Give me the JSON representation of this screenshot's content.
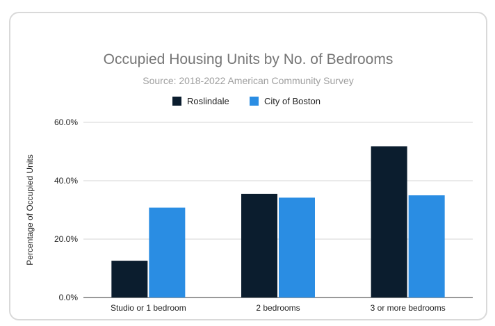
{
  "chart_data": {
    "type": "bar",
    "title": "Occupied Housing Units by No. of Bedrooms",
    "subtitle": "Source: 2018-2022 American Community Survey",
    "xlabel": "",
    "ylabel": "Percentage of Occupied Units",
    "categories": [
      "Studio or 1 bedroom",
      "2 bedrooms",
      "3 or more bedrooms"
    ],
    "series": [
      {
        "name": "Roslindale",
        "color": "#0b1d2e",
        "values": [
          12.6,
          35.5,
          51.8
        ]
      },
      {
        "name": "City of Boston",
        "color": "#2a8de3",
        "values": [
          30.8,
          34.2,
          35.0
        ]
      }
    ],
    "ylim": [
      0,
      60
    ],
    "yticks": [
      0,
      20,
      40,
      60
    ],
    "ytick_labels": [
      "0.0%",
      "20.0%",
      "40.0%",
      "60.0%"
    ],
    "grid": true,
    "legend_position": "top"
  }
}
